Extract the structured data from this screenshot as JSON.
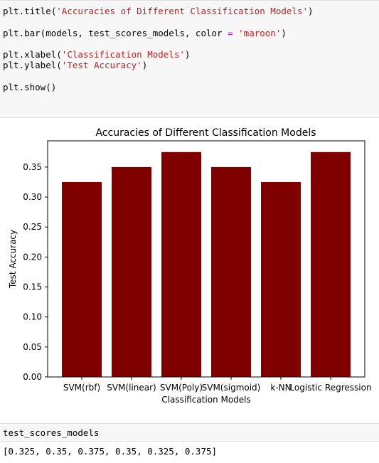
{
  "cell1": {
    "lines": [
      {
        "fn": "plt.title(",
        "str": "'Accuracies of Different Classification Models'",
        "end": ")"
      },
      {
        "fn": "plt.bar(models, test_scores_models, color ",
        "op": "=",
        "mid": " ",
        "str": "'maroon'",
        "end": ")"
      },
      {
        "fn": "plt.xlabel(",
        "str": "'Classification Models'",
        "end": ")"
      },
      {
        "fn": "plt.ylabel(",
        "str": "'Test Accuracy'",
        "end": ")"
      },
      {
        "fn": "plt.show()"
      }
    ]
  },
  "cell2": {
    "code": "test_scores_models",
    "output": "[0.325, 0.35, 0.375, 0.35, 0.325, 0.375]"
  },
  "chart_data": {
    "type": "bar",
    "title": "Accuracies of Different Classification Models",
    "xlabel": "Classification Models",
    "ylabel": "Test Accuracy",
    "categories": [
      "SVM(rbf)",
      "SVM(linear)",
      "SVM(Poly)",
      "SVM(sigmoid)",
      "k-NN",
      "Logistic Regression"
    ],
    "values": [
      0.325,
      0.35,
      0.375,
      0.35,
      0.325,
      0.375
    ],
    "yticks": [
      "0.00",
      "0.05",
      "0.10",
      "0.15",
      "0.20",
      "0.25",
      "0.30",
      "0.35"
    ],
    "ylim": [
      0,
      0.39375
    ],
    "color": "#800000",
    "grid": false
  }
}
